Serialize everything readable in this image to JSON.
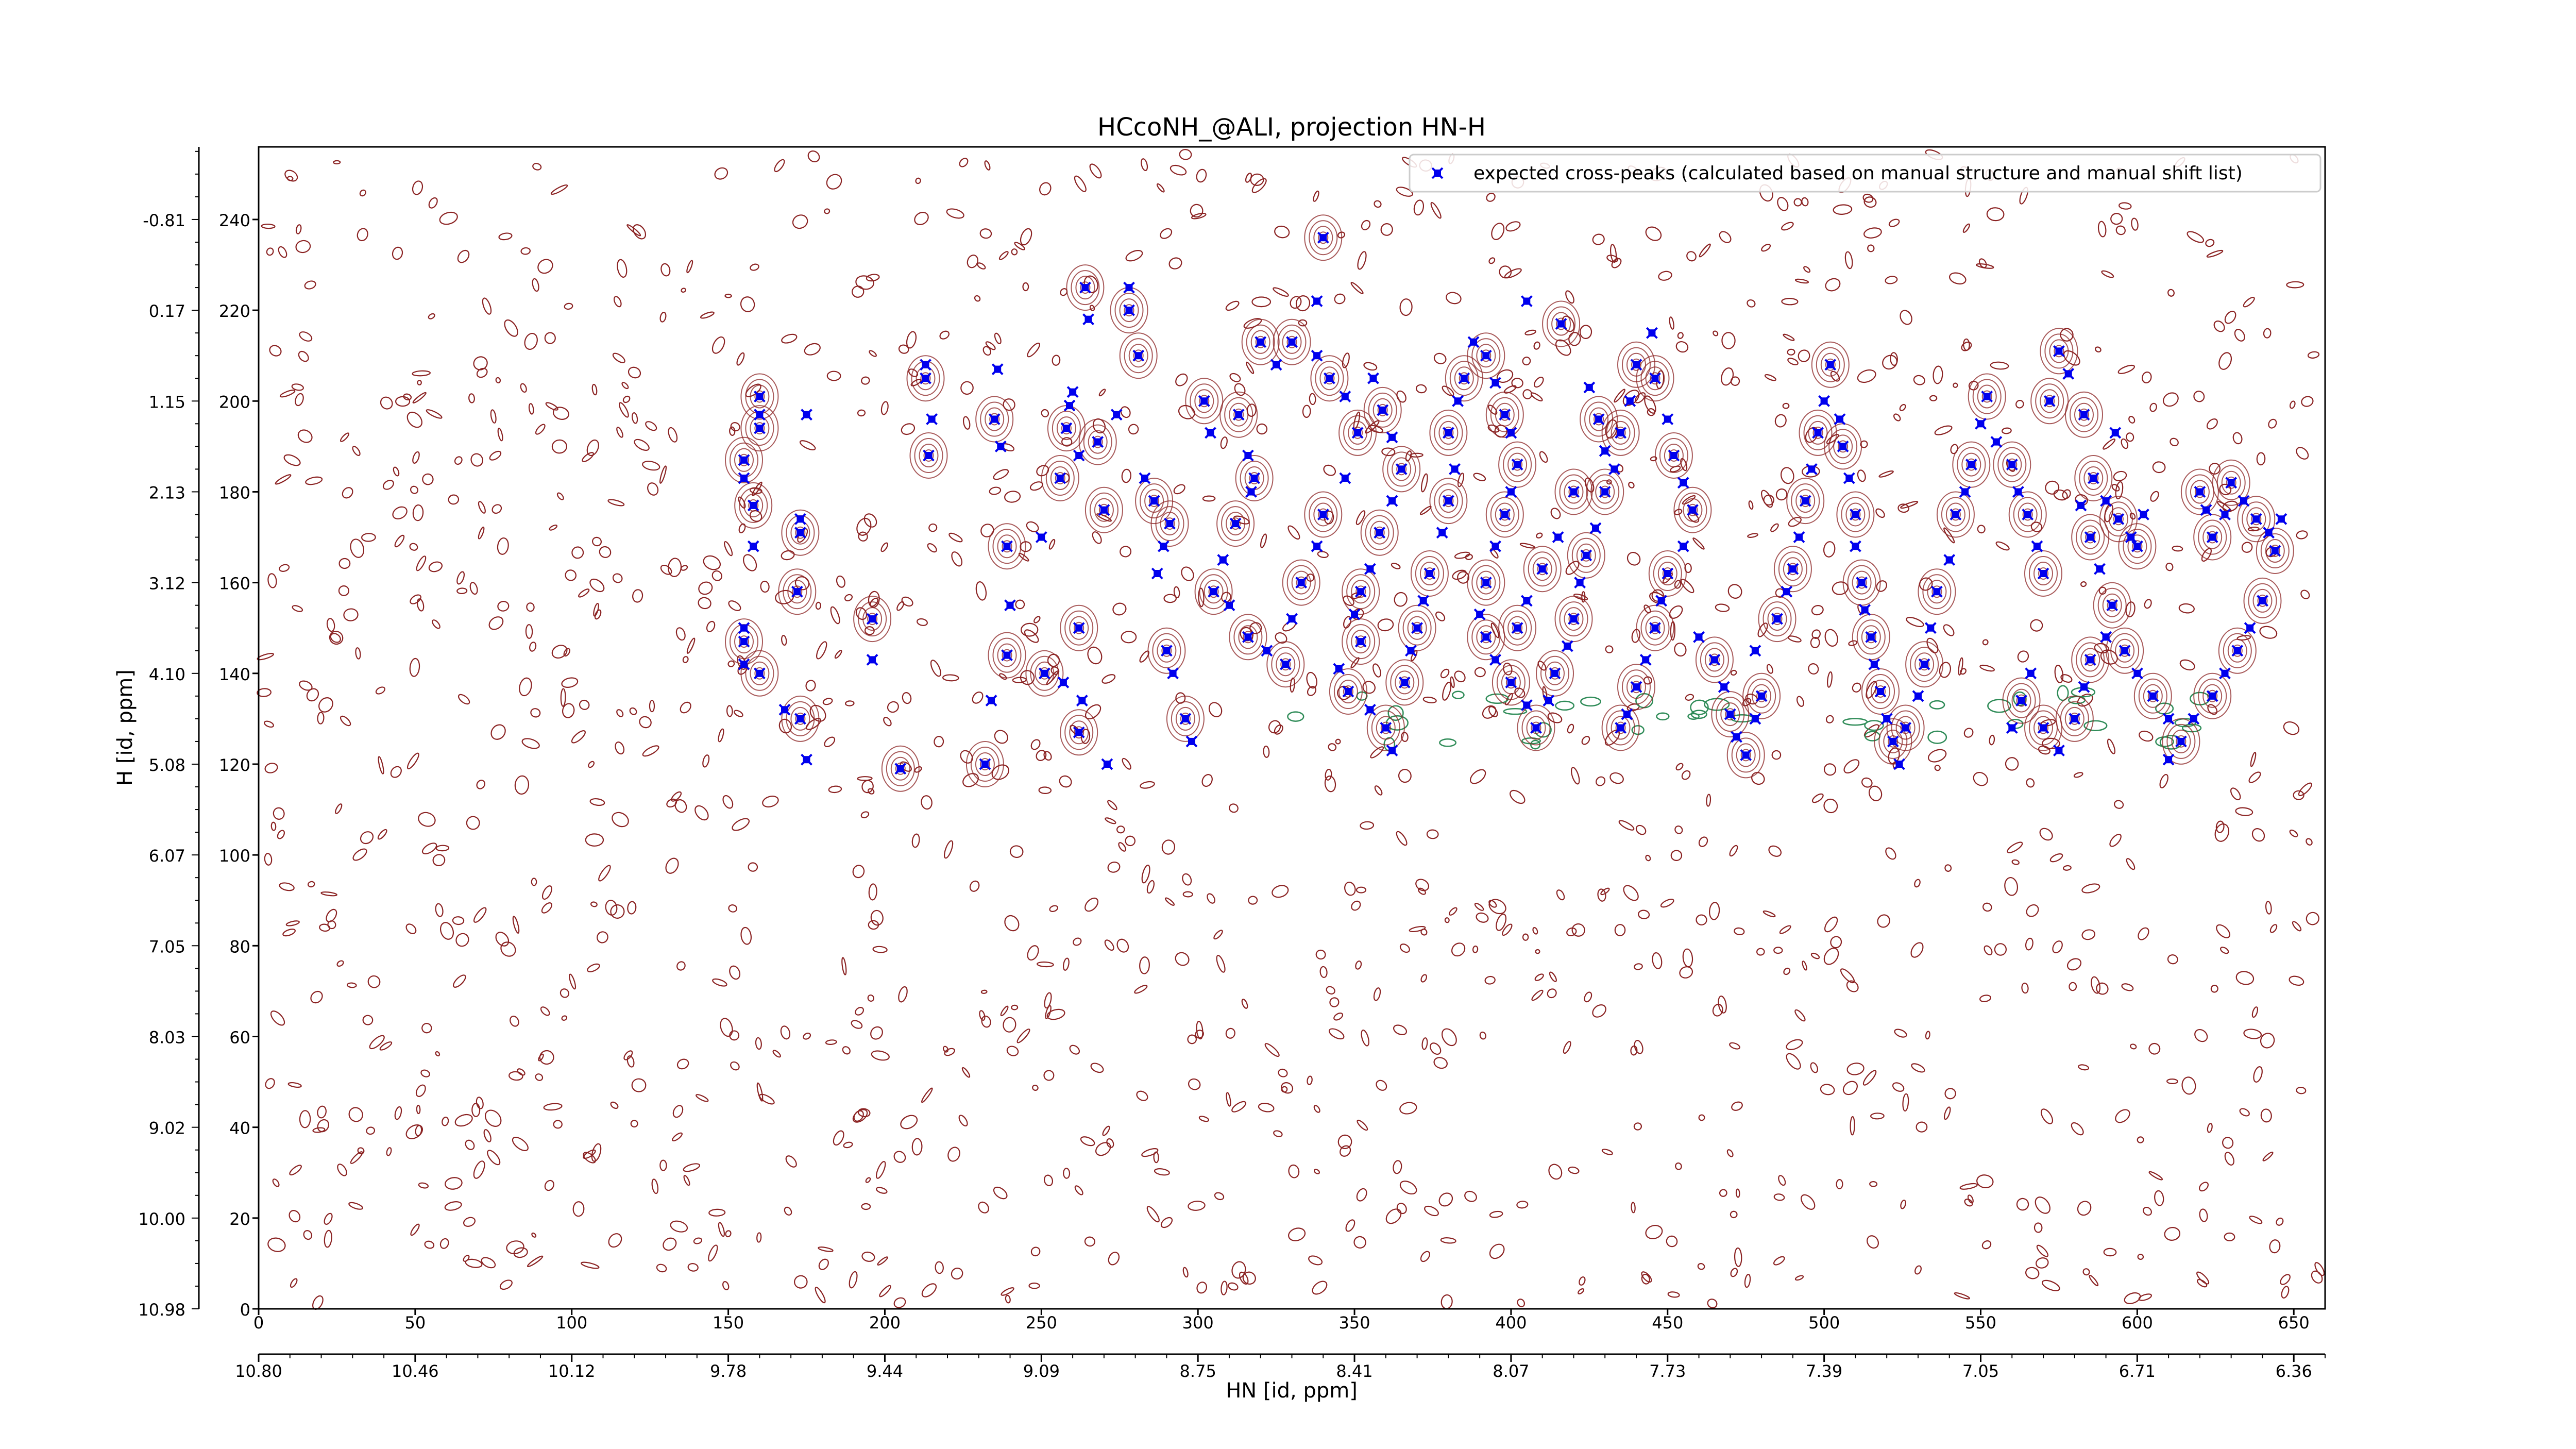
{
  "chart_data": {
    "type": "scatter",
    "title": "HCcoNH_@ALI, projection HN-H",
    "xlabel": "HN [id, ppm]",
    "ylabel": "H [id, ppm]",
    "xlim": [
      0,
      660
    ],
    "ylim": [
      0,
      256
    ],
    "x_ticks": [
      0,
      50,
      100,
      150,
      200,
      250,
      300,
      350,
      400,
      450,
      500,
      550,
      600,
      650
    ],
    "y_ticks": [
      0,
      20,
      40,
      60,
      80,
      100,
      120,
      140,
      160,
      180,
      200,
      220,
      240
    ],
    "x_ppm_tick_labels": [
      "10.80",
      "10.46",
      "10.12",
      "9.78",
      "9.44",
      "9.09",
      "8.75",
      "8.41",
      "8.07",
      "7.73",
      "7.39",
      "7.05",
      "6.71",
      "6.36"
    ],
    "y_ppm_tick_labels": [
      "10.98",
      "10.00",
      "9.02",
      "8.03",
      "7.05",
      "6.07",
      "5.08",
      "4.10",
      "3.12",
      "2.13",
      "1.15",
      "0.17",
      "-0.81"
    ],
    "grid": false,
    "legend": {
      "position": "top-right",
      "entries": [
        "expected cross-peaks (calculated based on manual structure and manual shift list)"
      ]
    },
    "colors": {
      "expected_peaks": "#0000ee",
      "positive_contours": "#8b2323",
      "negative_contours": "#2e8b57"
    },
    "series": [
      {
        "name": "expected cross-peaks (calculated based on manual structure and manual shift list)",
        "points": [
          [
            155,
            187
          ],
          [
            155,
            183
          ],
          [
            158,
            177
          ],
          [
            158,
            168
          ],
          [
            160,
            201
          ],
          [
            160,
            197
          ],
          [
            160,
            194
          ],
          [
            155,
            150
          ],
          [
            155,
            147
          ],
          [
            155,
            142
          ],
          [
            160,
            140
          ],
          [
            173,
            174
          ],
          [
            173,
            171
          ],
          [
            175,
            197
          ],
          [
            172,
            158
          ],
          [
            168,
            132
          ],
          [
            173,
            130
          ],
          [
            175,
            121
          ],
          [
            196,
            152
          ],
          [
            196,
            143
          ],
          [
            205,
            119
          ],
          [
            213,
            208
          ],
          [
            213,
            205
          ],
          [
            215,
            196
          ],
          [
            214,
            188
          ],
          [
            236,
            207
          ],
          [
            235,
            196
          ],
          [
            237,
            190
          ],
          [
            239,
            168
          ],
          [
            240,
            155
          ],
          [
            239,
            144
          ],
          [
            234,
            134
          ],
          [
            232,
            120
          ],
          [
            250,
            170
          ],
          [
            251,
            140
          ],
          [
            257,
            138
          ],
          [
            262,
            150
          ],
          [
            265,
            218
          ],
          [
            264,
            225
          ],
          [
            278,
            225
          ],
          [
            278,
            220
          ],
          [
            259,
            199
          ],
          [
            258,
            194
          ],
          [
            260,
            202
          ],
          [
            256,
            183
          ],
          [
            262,
            188
          ],
          [
            268,
            191
          ],
          [
            274,
            197
          ],
          [
            270,
            176
          ],
          [
            263,
            134
          ],
          [
            262,
            127
          ],
          [
            271,
            120
          ],
          [
            281,
            210
          ],
          [
            283,
            183
          ],
          [
            286,
            178
          ],
          [
            289,
            168
          ],
          [
            291,
            173
          ],
          [
            287,
            162
          ],
          [
            290,
            145
          ],
          [
            292,
            140
          ],
          [
            296,
            130
          ],
          [
            298,
            125
          ],
          [
            302,
            200
          ],
          [
            304,
            193
          ],
          [
            313,
            197
          ],
          [
            316,
            188
          ],
          [
            318,
            183
          ],
          [
            317,
            180
          ],
          [
            312,
            173
          ],
          [
            308,
            165
          ],
          [
            305,
            158
          ],
          [
            310,
            155
          ],
          [
            316,
            148
          ],
          [
            322,
            145
          ],
          [
            328,
            142
          ],
          [
            330,
            152
          ],
          [
            333,
            160
          ],
          [
            338,
            168
          ],
          [
            340,
            175
          ],
          [
            347,
            183
          ],
          [
            351,
            193
          ],
          [
            347,
            201
          ],
          [
            342,
            205
          ],
          [
            338,
            210
          ],
          [
            320,
            213
          ],
          [
            325,
            208
          ],
          [
            330,
            213
          ],
          [
            338,
            222
          ],
          [
            340,
            236
          ],
          [
            356,
            205
          ],
          [
            359,
            198
          ],
          [
            362,
            192
          ],
          [
            365,
            185
          ],
          [
            362,
            178
          ],
          [
            358,
            171
          ],
          [
            355,
            163
          ],
          [
            352,
            158
          ],
          [
            350,
            153
          ],
          [
            352,
            147
          ],
          [
            345,
            141
          ],
          [
            348,
            136
          ],
          [
            355,
            132
          ],
          [
            360,
            128
          ],
          [
            362,
            123
          ],
          [
            366,
            138
          ],
          [
            368,
            145
          ],
          [
            370,
            150
          ],
          [
            372,
            156
          ],
          [
            374,
            162
          ],
          [
            378,
            171
          ],
          [
            380,
            178
          ],
          [
            382,
            185
          ],
          [
            380,
            193
          ],
          [
            383,
            200
          ],
          [
            385,
            205
          ],
          [
            388,
            213
          ],
          [
            392,
            210
          ],
          [
            395,
            204
          ],
          [
            398,
            197
          ],
          [
            400,
            193
          ],
          [
            402,
            186
          ],
          [
            400,
            180
          ],
          [
            398,
            175
          ],
          [
            395,
            168
          ],
          [
            392,
            160
          ],
          [
            390,
            153
          ],
          [
            392,
            148
          ],
          [
            395,
            143
          ],
          [
            400,
            138
          ],
          [
            405,
            133
          ],
          [
            408,
            128
          ],
          [
            412,
            134
          ],
          [
            414,
            140
          ],
          [
            418,
            146
          ],
          [
            420,
            152
          ],
          [
            422,
            160
          ],
          [
            424,
            166
          ],
          [
            427,
            172
          ],
          [
            430,
            180
          ],
          [
            433,
            185
          ],
          [
            435,
            193
          ],
          [
            438,
            200
          ],
          [
            440,
            208
          ],
          [
            445,
            215
          ],
          [
            446,
            205
          ],
          [
            450,
            196
          ],
          [
            452,
            188
          ],
          [
            455,
            182
          ],
          [
            458,
            176
          ],
          [
            455,
            168
          ],
          [
            450,
            162
          ],
          [
            448,
            156
          ],
          [
            446,
            150
          ],
          [
            443,
            143
          ],
          [
            440,
            137
          ],
          [
            437,
            131
          ],
          [
            435,
            128
          ],
          [
            405,
            222
          ],
          [
            416,
            217
          ],
          [
            425,
            203
          ],
          [
            428,
            196
          ],
          [
            430,
            189
          ],
          [
            420,
            180
          ],
          [
            415,
            170
          ],
          [
            410,
            163
          ],
          [
            405,
            156
          ],
          [
            402,
            150
          ],
          [
            460,
            148
          ],
          [
            465,
            143
          ],
          [
            468,
            137
          ],
          [
            470,
            131
          ],
          [
            472,
            126
          ],
          [
            475,
            122
          ],
          [
            478,
            130
          ],
          [
            480,
            135
          ],
          [
            478,
            145
          ],
          [
            485,
            152
          ],
          [
            488,
            158
          ],
          [
            490,
            163
          ],
          [
            492,
            170
          ],
          [
            494,
            178
          ],
          [
            496,
            185
          ],
          [
            498,
            193
          ],
          [
            500,
            200
          ],
          [
            502,
            208
          ],
          [
            505,
            196
          ],
          [
            506,
            190
          ],
          [
            508,
            183
          ],
          [
            510,
            175
          ],
          [
            510,
            168
          ],
          [
            512,
            160
          ],
          [
            513,
            154
          ],
          [
            515,
            148
          ],
          [
            516,
            142
          ],
          [
            518,
            136
          ],
          [
            520,
            130
          ],
          [
            522,
            125
          ],
          [
            524,
            120
          ],
          [
            526,
            128
          ],
          [
            530,
            135
          ],
          [
            532,
            142
          ],
          [
            534,
            150
          ],
          [
            536,
            158
          ],
          [
            540,
            165
          ],
          [
            542,
            175
          ],
          [
            545,
            180
          ],
          [
            547,
            186
          ],
          [
            550,
            195
          ],
          [
            552,
            201
          ],
          [
            555,
            191
          ],
          [
            560,
            186
          ],
          [
            562,
            180
          ],
          [
            565,
            175
          ],
          [
            568,
            168
          ],
          [
            570,
            162
          ],
          [
            566,
            140
          ],
          [
            563,
            134
          ],
          [
            560,
            128
          ],
          [
            570,
            128
          ],
          [
            575,
            123
          ],
          [
            580,
            130
          ],
          [
            583,
            137
          ],
          [
            585,
            143
          ],
          [
            590,
            148
          ],
          [
            592,
            155
          ],
          [
            588,
            163
          ],
          [
            585,
            170
          ],
          [
            582,
            177
          ],
          [
            586,
            183
          ],
          [
            590,
            178
          ],
          [
            594,
            174
          ],
          [
            598,
            170
          ],
          [
            600,
            168
          ],
          [
            602,
            175
          ],
          [
            596,
            145
          ],
          [
            600,
            140
          ],
          [
            605,
            135
          ],
          [
            610,
            130
          ],
          [
            583,
            197
          ],
          [
            593,
            193
          ],
          [
            620,
            180
          ],
          [
            622,
            176
          ],
          [
            624,
            170
          ],
          [
            628,
            175
          ],
          [
            630,
            182
          ],
          [
            634,
            178
          ],
          [
            638,
            174
          ],
          [
            642,
            171
          ],
          [
            644,
            167
          ],
          [
            646,
            174
          ],
          [
            640,
            156
          ],
          [
            636,
            150
          ],
          [
            632,
            145
          ],
          [
            628,
            140
          ],
          [
            624,
            135
          ],
          [
            618,
            130
          ],
          [
            614,
            125
          ],
          [
            610,
            121
          ],
          [
            572,
            200
          ],
          [
            578,
            206
          ],
          [
            575,
            211
          ]
        ]
      }
    ]
  }
}
